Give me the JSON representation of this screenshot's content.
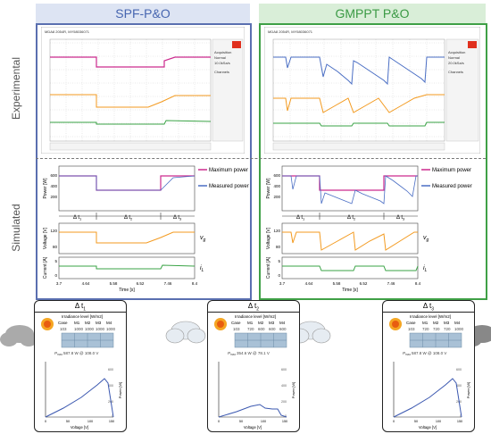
{
  "headers": {
    "left": "SPF-P&O",
    "right": "GMPPT P&O"
  },
  "row_labels": {
    "experimental": "Experimental",
    "simulated": "Simulated"
  },
  "scope": {
    "info_left": "MDA8 2054R, MY58036071",
    "info_right": "MDA8 2054R, MY58036071",
    "acq_title": "Acquisition",
    "acq_mode": "Normal",
    "acq_rate_left": "10.0kSa/s",
    "acq_rate_right": "20.0kSa/s",
    "channels_title": "Channels"
  },
  "sim": {
    "y_power": "Power [W]",
    "y_voltage": "Voltage [V]",
    "y_current": "Current [A]",
    "x_label": "Time [s]",
    "x_ticks": [
      "3.7",
      "4.64",
      "5.58",
      "6.52",
      "7.46",
      "8.4"
    ],
    "p_ticks": [
      "600",
      "400",
      "200",
      "0"
    ],
    "v_ticks": [
      "120",
      "80"
    ],
    "i_ticks": [
      "5",
      "0"
    ],
    "legend_max": "Maximum power",
    "legend_meas": "Measured power",
    "vg": "v",
    "vg_sub": "g",
    "il": "i",
    "il_sub": "L",
    "dt1": "Δ t",
    "dt1_sub": "1",
    "dt2": "Δ t",
    "dt2_sub": "2",
    "dt3": "Δ t",
    "dt3_sub": "3"
  },
  "panels": [
    {
      "title": "Δ t",
      "title_sub": "1",
      "irr_title": "Irradiance level [W/m2]",
      "case": "Case",
      "cols": [
        "M1",
        "M2",
        "M3",
        "M4"
      ],
      "vals": [
        "1000",
        "1000",
        "1000",
        "1000"
      ],
      "vals_left": "103",
      "pmax": "587.8 W @ 108.0 V",
      "pmax_sym": "P",
      "pmax_sub": "max",
      "pv_y": "Power [W]",
      "pv_x": "Voltage [V]",
      "y_ticks": [
        "600",
        "400",
        "200",
        "0"
      ],
      "x_ticks": [
        "0",
        "50",
        "100",
        "150"
      ]
    },
    {
      "title": "Δ t",
      "title_sub": "2",
      "irr_title": "Irradiance level [W/m2]",
      "case": "Case",
      "cols": [
        "M1",
        "M2",
        "M3",
        "M4"
      ],
      "vals": [
        "720",
        "600",
        "600",
        "600"
      ],
      "vals_left": "103",
      "pmax": "354.6 W @ 78.1 V",
      "pmax_sym": "P",
      "pmax_sub": "max",
      "pv_y": "Power [W]",
      "pv_x": "Voltage [V]",
      "y_ticks": [
        "600",
        "400",
        "200",
        "0"
      ],
      "x_ticks": [
        "0",
        "50",
        "100",
        "150"
      ]
    },
    {
      "title": "Δ t",
      "title_sub": "3",
      "irr_title": "Irradiance level [W/m2]",
      "case": "Case",
      "cols": [
        "M1",
        "M2",
        "M3",
        "M4"
      ],
      "vals": [
        "720",
        "720",
        "720",
        "1000"
      ],
      "vals_left": "103",
      "pmax": "587.8 W @ 108.0 V",
      "pmax_sym": "P",
      "pmax_sub": "max",
      "pv_y": "Power [W]",
      "pv_x": "Voltage [V]",
      "y_ticks": [
        "600",
        "400",
        "200",
        "0"
      ],
      "x_ticks": [
        "0",
        "50",
        "100",
        "150"
      ]
    }
  ],
  "colors": {
    "left_frame": "#5a6fb0",
    "right_frame": "#3fa046",
    "left_header_bg": "#dde4f3",
    "right_header_bg": "#d9eed8",
    "left_header_text": "#4766b0",
    "right_header_text": "#3b9a45",
    "magenta": "#cc2a8e",
    "blue": "#4a6ec4",
    "orange": "#f39a1f",
    "green": "#3aa346"
  }
}
